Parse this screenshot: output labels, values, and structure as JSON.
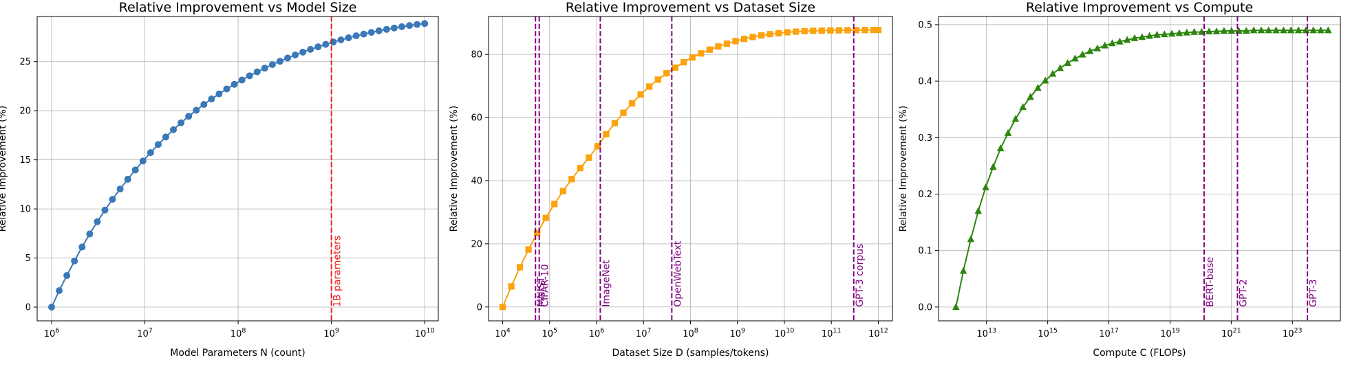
{
  "chart_data": [
    {
      "type": "line",
      "title": "Relative Improvement vs Model Size",
      "xlabel": "Model Parameters N (count)",
      "ylabel": "Relative Improvement (%)",
      "xscale": "log",
      "xlim": [
        700000,
        14000000000
      ],
      "ylim": [
        -1.4,
        29.6
      ],
      "xticks": [
        1000000,
        10000000,
        100000000,
        1000000000,
        10000000000
      ],
      "xtick_labels": [
        [
          "10",
          "6"
        ],
        [
          "10",
          "7"
        ],
        [
          "10",
          "8"
        ],
        [
          "10",
          "9"
        ],
        [
          "10",
          "10"
        ]
      ],
      "yticks": [
        0,
        5,
        10,
        15,
        20,
        25
      ],
      "ytick_labels": [
        "0",
        "5",
        "10",
        "15",
        "20",
        "25"
      ],
      "grid": true,
      "series": [
        {
          "color": "#3a78b7",
          "marker": "circle",
          "x": [
            1000000,
            1206793,
            1456348,
            1757511,
            2120951,
            2559548,
            3088844,
            3727594,
            4498433,
            5428675,
            6551286,
            7906044,
            9540955,
            11513954,
            13894955,
            16768329,
            20235896,
            24420531,
            29470517,
            35564803,
            42919343,
            51794747,
            62505519,
            75431201,
            91029818,
            109854114,
            132571137,
            159985872,
            193069773,
            232995181,
            281176870,
            339322177,
            409491506,
            494171336,
            596362332,
            719685673,
            868511374,
            1048113134,
            1264855217,
            1526417967,
            1842069969,
            2222996483,
            2682695795,
            3237457543,
            3906939937,
            4714866363,
            5689866029,
            6866488450,
            8286427728,
            10000000000
          ],
          "y": [
            0,
            1.68,
            3.22,
            4.7,
            6.12,
            7.45,
            8.7,
            9.88,
            10.98,
            12.03,
            13.02,
            13.97,
            14.88,
            15.74,
            16.56,
            17.33,
            18.07,
            18.77,
            19.43,
            20.05,
            20.64,
            21.2,
            21.72,
            22.22,
            22.69,
            23.13,
            23.56,
            23.96,
            24.34,
            24.7,
            25.04,
            25.37,
            25.68,
            25.97,
            26.25,
            26.51,
            26.76,
            27.0,
            27.22,
            27.43,
            27.63,
            27.81,
            27.98,
            28.14,
            28.29,
            28.43,
            28.56,
            28.68,
            28.79,
            28.88
          ]
        }
      ],
      "vlines": [
        {
          "x": 1000000000,
          "label": "1B parameters",
          "color": "#ee1c1c"
        }
      ]
    },
    {
      "type": "line",
      "title": "Relative Improvement vs Dataset Size",
      "xlabel": "Dataset Size D (samples/tokens)",
      "ylabel": "Relative Improvement (%)",
      "xscale": "log",
      "xlim": [
        5000,
        2000000000000
      ],
      "ylim": [
        -4.4,
        92.0
      ],
      "xticks": [
        10000,
        100000,
        1000000,
        10000000,
        100000000,
        1000000000,
        10000000000,
        100000000000,
        1000000000000
      ],
      "xtick_labels": [
        [
          "10",
          "4"
        ],
        [
          "10",
          "5"
        ],
        [
          "10",
          "6"
        ],
        [
          "10",
          "7"
        ],
        [
          "10",
          "8"
        ],
        [
          "10",
          "9"
        ],
        [
          "10",
          "10"
        ],
        [
          "10",
          "11"
        ],
        [
          "10",
          "12"
        ]
      ],
      "yticks": [
        0,
        20,
        40,
        60,
        80
      ],
      "ytick_labels": [
        "0",
        "20",
        "40",
        "60",
        "80"
      ],
      "grid": true,
      "series": [
        {
          "color": "#fba20d",
          "marker": "square",
          "x": [
            10000,
            15264,
            23300,
            35565,
            54287,
            82864,
            126486,
            193070,
            294705,
            449843,
            686649,
            1048113,
            1599859,
            2442053,
            3727594,
            5689866,
            8685114,
            13257114,
            20235896,
            30888436,
            47148664,
            71968567,
            109854114,
            167683294,
            255954792,
            390693994,
            596362332,
            910298178,
            1389495494,
            2120950888,
            3237457543,
            4941713361,
            7543120063,
            11513953993,
            17575106249,
            26826957953,
            40949150624,
            62505519253,
            95409547635,
            145634847750,
            222299648253,
            339322177189,
            517947467923,
            790604321091,
            1000000000000
          ],
          "y": [
            0,
            6.5,
            12.6,
            18.2,
            23.4,
            28.2,
            32.6,
            36.7,
            40.5,
            44.0,
            47.3,
            50.9,
            54.7,
            58.2,
            61.5,
            64.5,
            67.3,
            69.8,
            72.0,
            74.0,
            75.8,
            77.5,
            79.0,
            80.3,
            81.5,
            82.5,
            83.4,
            84.2,
            84.9,
            85.5,
            86.0,
            86.4,
            86.7,
            87.0,
            87.2,
            87.35,
            87.45,
            87.52,
            87.58,
            87.62,
            87.65,
            87.68,
            87.7,
            87.72,
            87.73
          ]
        }
      ],
      "vlines": [
        {
          "x": 50000,
          "label": "MNIST",
          "color": "#800080"
        },
        {
          "x": 60000,
          "label": "CIFAR-10",
          "color": "#800080"
        },
        {
          "x": 1200000,
          "label": "ImageNet",
          "color": "#800080"
        },
        {
          "x": 40000000,
          "label": "OpenWebText",
          "color": "#800080"
        },
        {
          "x": 300000000000,
          "label": "GPT-3 corpus",
          "color": "#800080"
        }
      ]
    },
    {
      "type": "line",
      "title": "Relative Improvement vs Compute",
      "xlabel": "Compute C (FLOPs)",
      "ylabel": "Relative Improvement (%)",
      "xscale": "log",
      "xlim": [
        270000000000.0,
        3.7e+24
      ],
      "ylim": [
        -0.0245,
        0.5145
      ],
      "xticks": [
        10000000000000.0,
        1000000000000000.0,
        1e+17,
        1e+19,
        1e+21,
        1e+23
      ],
      "xtick_labels": [
        [
          "10",
          "13"
        ],
        [
          "10",
          "15"
        ],
        [
          "10",
          "17"
        ],
        [
          "10",
          "19"
        ],
        [
          "10",
          "21"
        ],
        [
          "10",
          "23"
        ]
      ],
      "yticks": [
        0.0,
        0.1,
        0.2,
        0.3,
        0.4,
        0.5
      ],
      "ytick_labels": [
        "0.0",
        "0.1",
        "0.2",
        "0.3",
        "0.4",
        "0.5"
      ],
      "grid": true,
      "series": [
        {
          "color": "#2c860e",
          "marker": "triangle",
          "x": [
            1000000000000.0,
            1750000000000.0,
            3070000000000.0,
            5370000000000.0,
            9410000000000.0,
            16500000000000.0,
            28900000000000.0,
            50600000000000.0,
            88600000000000.0,
            155000000000000.0,
            272000000000000.0,
            476000000000000.0,
            834000000000000.0,
            1460000000000000.0,
            2560000000000000.0,
            4480000000000000.0,
            7850000000000000.0,
            1.37e+16,
            2.41e+16,
            4.22e+16,
            7.39e+16,
            1.29e+17,
            2.27e+17,
            3.97e+17,
            6.95e+17,
            1.22e+18,
            2.13e+18,
            3.74e+18,
            6.55e+18,
            1.15e+19,
            2.01e+19,
            3.52e+19,
            6.16e+19,
            1.08e+20,
            1.89e+20,
            3.31e+20,
            5.8e+20,
            1.02e+21,
            1.78e+21,
            3.12e+21,
            5.46e+21,
            9.56e+21,
            1.67e+22,
            2.93e+22,
            5.14e+22,
            9e+22,
            1.58e+23,
            2.76e+23,
            4.84e+23,
            8.47e+23,
            1.48e+24
          ],
          "y": [
            0,
            0.064,
            0.12,
            0.17,
            0.212,
            0.248,
            0.281,
            0.308,
            0.333,
            0.354,
            0.372,
            0.388,
            0.401,
            0.413,
            0.423,
            0.432,
            0.44,
            0.447,
            0.453,
            0.458,
            0.463,
            0.467,
            0.47,
            0.473,
            0.476,
            0.478,
            0.48,
            0.482,
            0.483,
            0.484,
            0.485,
            0.486,
            0.487,
            0.487,
            0.488,
            0.488,
            0.489,
            0.489,
            0.489,
            0.489,
            0.49,
            0.49,
            0.49,
            0.49,
            0.49,
            0.49,
            0.49,
            0.49,
            0.49,
            0.49,
            0.49
          ]
        }
      ],
      "vlines": [
        {
          "x": 1.3e+20,
          "label": "BERT-base",
          "color": "#800080"
        },
        {
          "x": 1.6e+21,
          "label": "GPT-2",
          "color": "#800080"
        },
        {
          "x": 3.1e+23,
          "label": "GPT-3",
          "color": "#800080"
        }
      ]
    }
  ]
}
